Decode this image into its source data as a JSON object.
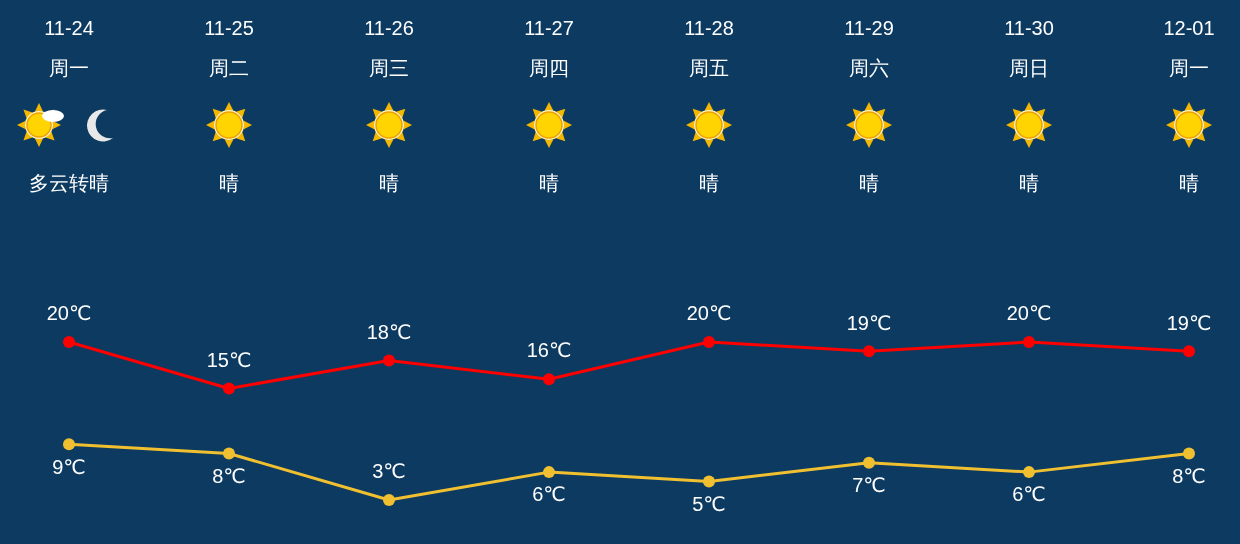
{
  "chart_data": {
    "type": "line",
    "categories": [
      "11-24",
      "11-25",
      "11-26",
      "11-27",
      "11-28",
      "11-29",
      "11-30",
      "12-01"
    ],
    "series": [
      {
        "color": "#ff0000",
        "values": [
          20,
          15,
          18,
          16,
          20,
          19,
          20,
          19
        ],
        "value_labels": [
          "20℃",
          "15℃",
          "18℃",
          "16℃",
          "20℃",
          "19℃",
          "20℃",
          "19℃"
        ]
      },
      {
        "color": "#f0c030",
        "values": [
          9,
          8,
          3,
          6,
          5,
          7,
          6,
          8
        ],
        "value_labels": [
          "9℃",
          "8℃",
          "3℃",
          "6℃",
          "5℃",
          "7℃",
          "6℃",
          "8℃"
        ]
      }
    ],
    "marker": "circle",
    "line_style": "solid",
    "annotations": [
      "周一",
      "周二",
      "周三",
      "周四",
      "周五",
      "周六",
      "周日",
      "周一",
      "多云转晴",
      "晴",
      "晴",
      "晴",
      "晴",
      "晴",
      "晴",
      "晴"
    ]
  }
}
